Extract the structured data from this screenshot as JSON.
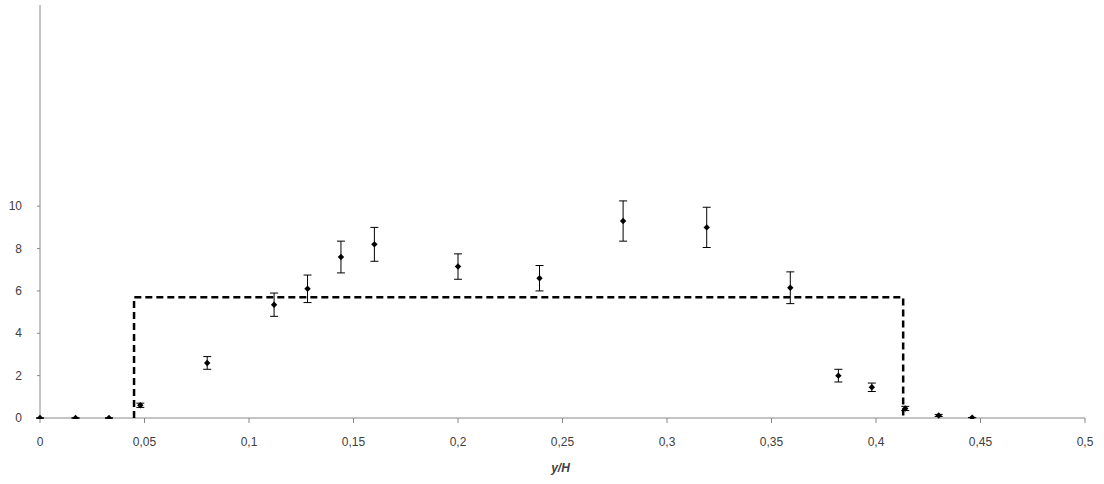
{
  "chart_data": {
    "type": "scatter",
    "x_label": "y/H",
    "xlim": [
      0,
      0.5
    ],
    "ylim": [
      0,
      19.5
    ],
    "xticks": [
      0,
      {
        "value": 0.05,
        "label": "0,05"
      },
      {
        "value": 0.1,
        "label": "0,1"
      },
      {
        "value": 0.15,
        "label": "0,15"
      },
      {
        "value": 0.2,
        "label": "0,2"
      },
      {
        "value": 0.25,
        "label": "0,25"
      },
      {
        "value": 0.3,
        "label": "0,3"
      },
      {
        "value": 0.35,
        "label": "0,35"
      },
      {
        "value": 0.4,
        "label": "0,4"
      },
      {
        "value": 0.45,
        "label": "0,45"
      },
      {
        "value": 0.5,
        "label": "0,5"
      }
    ],
    "yticks": [
      0,
      2,
      4,
      6,
      8,
      10
    ],
    "grid": false,
    "series": [
      {
        "type": "scatter",
        "marker": "diamond",
        "color": "#000000",
        "x": [
          0,
          0.017,
          0.033,
          0.048,
          0.08,
          0.112,
          0.128,
          0.144,
          0.16,
          0.2,
          0.239,
          0.279,
          0.319,
          0.359,
          0.382,
          0.398,
          0.414,
          0.43,
          0.446
        ],
        "values": [
          0,
          0,
          0,
          0.6,
          2.6,
          5.35,
          6.1,
          7.6,
          8.2,
          7.15,
          6.6,
          9.3,
          9.0,
          6.15,
          2.0,
          1.45,
          0.45,
          0.12,
          0.02
        ],
        "errors": [
          0,
          0,
          0,
          0.1,
          0.3,
          0.55,
          0.65,
          0.75,
          0.8,
          0.6,
          0.6,
          0.95,
          0.95,
          0.75,
          0.3,
          0.2,
          0.1,
          0.05,
          0
        ]
      },
      {
        "type": "line",
        "line_style": "dashed",
        "color": "#000000",
        "x": [
          0.045,
          0.045,
          0.413,
          0.413
        ],
        "values": [
          0,
          5.7,
          5.7,
          0
        ]
      }
    ]
  }
}
